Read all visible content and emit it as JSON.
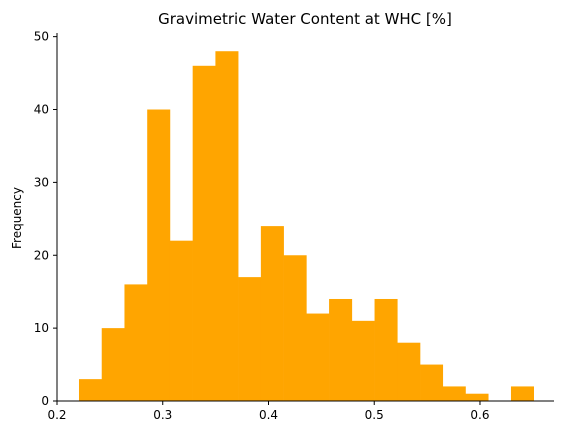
{
  "chart_data": {
    "type": "bar",
    "title": "Gravimetric Water Content at WHC [%]",
    "xlabel": "",
    "ylabel": "Frequency",
    "bin_edges": [
      0.2208,
      0.2423,
      0.2638,
      0.2853,
      0.3068,
      0.3283,
      0.3498,
      0.3713,
      0.3928,
      0.4143,
      0.4358,
      0.4573,
      0.4788,
      0.5003,
      0.5218,
      0.5433,
      0.5648,
      0.5863,
      0.6078,
      0.6293,
      0.6508
    ],
    "values": [
      3,
      10,
      16,
      40,
      22,
      46,
      48,
      17,
      24,
      20,
      12,
      14,
      11,
      14,
      8,
      5,
      2,
      1,
      0,
      2
    ],
    "xlim": [
      0.2,
      0.67
    ],
    "ylim": [
      0,
      50.5
    ],
    "xticks": [
      0.2,
      0.3,
      0.4,
      0.5,
      0.6
    ],
    "xtick_labels": [
      "0.2",
      "0.3",
      "0.4",
      "0.5",
      "0.6"
    ],
    "yticks": [
      0,
      10,
      20,
      30,
      40,
      50
    ],
    "ytick_labels": [
      "0",
      "10",
      "20",
      "30",
      "40",
      "50"
    ],
    "bar_color": "#ffa500",
    "grid": false,
    "legend": "none"
  }
}
